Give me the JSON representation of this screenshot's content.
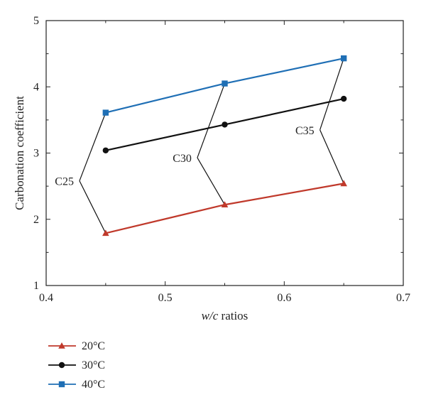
{
  "chart_data": {
    "type": "line",
    "x": [
      0.45,
      0.55,
      0.65
    ],
    "series": [
      {
        "name": "20°C",
        "values": [
          1.79,
          2.22,
          2.54
        ],
        "color": "#c0392b",
        "marker": "triangle"
      },
      {
        "name": "30°C",
        "values": [
          3.04,
          3.43,
          3.82
        ],
        "color": "#111111",
        "marker": "circle"
      },
      {
        "name": "40°C",
        "values": [
          3.61,
          4.05,
          4.43
        ],
        "color": "#1f6fb5",
        "marker": "square"
      }
    ],
    "xlabel_italic": "w/c",
    "xlabel_rest": " ratios",
    "ylabel": "Carbonation coefficient",
    "xlim": [
      0.4,
      0.7
    ],
    "ylim": [
      1,
      5
    ],
    "xticks": [
      "0.4",
      "0.5",
      "0.6",
      "0.7"
    ],
    "yticks": [
      "1",
      "2",
      "3",
      "4",
      "5"
    ],
    "grid": false,
    "legend_position": "bottom-left",
    "annotations": [
      {
        "text": "C25",
        "hub": [
          0.428,
          2.58
        ],
        "x_index": 0
      },
      {
        "text": "C30",
        "hub": [
          0.527,
          2.93
        ],
        "x_index": 1
      },
      {
        "text": "C35",
        "hub": [
          0.63,
          3.35
        ],
        "x_index": 2
      }
    ]
  }
}
